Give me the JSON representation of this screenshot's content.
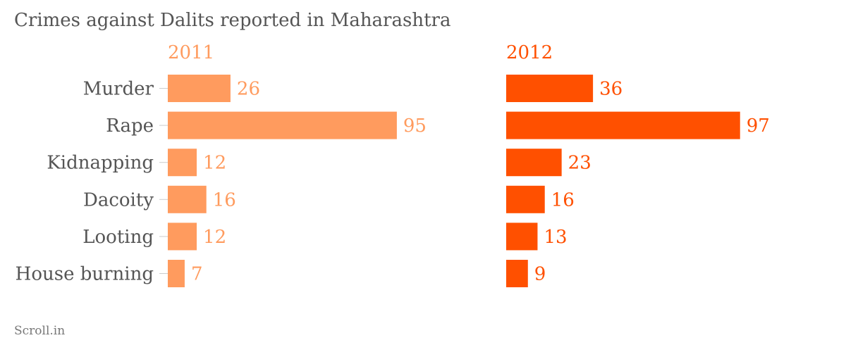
{
  "title": "Crimes against Dalits reported in Maharashtra",
  "source": "Scroll.in",
  "colors": {
    "series_2011": "#ff9b5e",
    "series_2012": "#ff5000",
    "text": "#555555",
    "tick": "#cccccc"
  },
  "chart_data": {
    "type": "bar",
    "orientation": "horizontal",
    "title": "Crimes against Dalits reported in Maharashtra",
    "categories": [
      "Murder",
      "Rape",
      "Kidnapping",
      "Dacoity",
      "Looting",
      "House burning"
    ],
    "series": [
      {
        "name": "2011",
        "values": [
          26,
          95,
          12,
          16,
          12,
          7
        ]
      },
      {
        "name": "2012",
        "values": [
          36,
          97,
          23,
          16,
          13,
          9
        ]
      }
    ],
    "xlim": [
      0,
      100
    ],
    "grid": false,
    "legend": "none",
    "data_labels": true
  }
}
